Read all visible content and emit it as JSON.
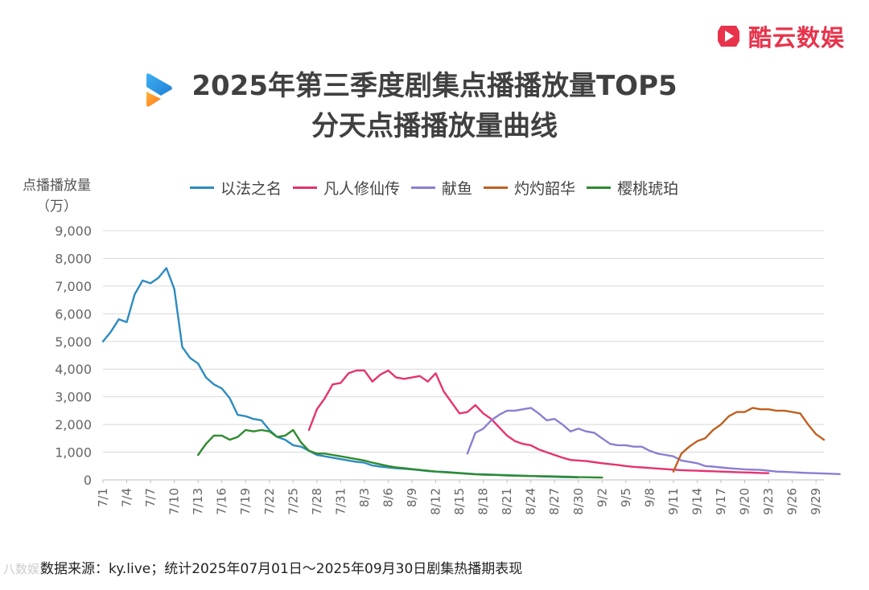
{
  "brand": {
    "name": "酷云数娱",
    "logo_icon": "kuyun-play-logo-icon",
    "color": "#e8334b"
  },
  "header": {
    "icon": "gradient-play-icon",
    "title_line1": "2025年第三季度剧集点播播放量TOP5",
    "title_line2": "分天点播播放量曲线"
  },
  "y_axis_label": {
    "line1": "点播播放量",
    "line2": "（万）"
  },
  "source": "数据来源：ky.live；统计2025年07月01日～2025年09月30日剧集热播期表现",
  "watermark": "八数娱乐",
  "chart_data": {
    "type": "line",
    "title": "分天点播播放量曲线",
    "ylabel": "点播播放量（万）",
    "ylim": [
      0,
      9000
    ],
    "yticks": [
      0,
      1000,
      2000,
      3000,
      4000,
      5000,
      6000,
      7000,
      8000,
      9000
    ],
    "ytick_labels": [
      "0",
      "1,000",
      "2,000",
      "3,000",
      "4,000",
      "5,000",
      "6,000",
      "7,000",
      "8,000",
      "9,000"
    ],
    "grid": true,
    "legend_position": "top",
    "x_start": "7/1",
    "num_days": 92,
    "xtick_every": 3,
    "xtick_labels": [
      "7/1",
      "7/4",
      "7/7",
      "7/10",
      "7/13",
      "7/16",
      "7/19",
      "7/22",
      "7/25",
      "7/28",
      "7/31",
      "8/3",
      "8/6",
      "8/9",
      "8/12",
      "8/15",
      "8/18",
      "8/21",
      "8/24",
      "8/27",
      "8/30",
      "9/2",
      "9/5",
      "9/8",
      "9/11",
      "9/14",
      "9/17",
      "9/20",
      "9/23",
      "9/26",
      "9/29"
    ],
    "series": [
      {
        "name": "以法之名",
        "color": "#2e8bc0",
        "start_day": 0,
        "values": [
          5000,
          5350,
          5800,
          5700,
          6700,
          7200,
          7100,
          7300,
          7650,
          6900,
          4800,
          4400,
          4200,
          3700,
          3450,
          3300,
          2950,
          2350,
          2300,
          2200,
          2150,
          1800,
          1550,
          1450,
          1250,
          1200,
          1050,
          900,
          850,
          800,
          750,
          700,
          650,
          620,
          520,
          480,
          450,
          420,
          400,
          380,
          350,
          320,
          300,
          290,
          270,
          250,
          230,
          210,
          200,
          190,
          180,
          170,
          160,
          150,
          140,
          130,
          120,
          110,
          100,
          95,
          90
        ]
      },
      {
        "name": "凡人修仙传",
        "color": "#e5336f",
        "start_day": 26,
        "values": [
          1800,
          2550,
          2950,
          3450,
          3500,
          3850,
          3950,
          3950,
          3550,
          3800,
          3950,
          3700,
          3650,
          3700,
          3750,
          3550,
          3850,
          3200,
          2800,
          2400,
          2450,
          2700,
          2400,
          2200,
          1900,
          1600,
          1400,
          1300,
          1250,
          1100,
          1000,
          900,
          800,
          720,
          700,
          680,
          640,
          600,
          570,
          540,
          500,
          470,
          450,
          430,
          410,
          390,
          370,
          350,
          340,
          330,
          320,
          310,
          300,
          290,
          280,
          270,
          260,
          250,
          240
        ]
      },
      {
        "name": "献鱼",
        "color": "#8a7fd1",
        "start_day": 46,
        "values": [
          950,
          1700,
          1850,
          2150,
          2350,
          2500,
          2500,
          2550,
          2600,
          2400,
          2150,
          2200,
          2000,
          1750,
          1850,
          1750,
          1700,
          1500,
          1300,
          1250,
          1250,
          1200,
          1200,
          1050,
          950,
          900,
          850,
          700,
          650,
          600,
          500,
          480,
          450,
          420,
          400,
          380,
          370,
          360,
          330,
          300,
          290,
          280,
          260,
          250,
          240,
          230,
          220,
          210
        ]
      },
      {
        "name": "灼灼韶华",
        "color": "#c0601f",
        "start_day": 72,
        "values": [
          300,
          950,
          1200,
          1400,
          1500,
          1800,
          2000,
          2300,
          2450,
          2450,
          2600,
          2550,
          2550,
          2500,
          2500,
          2450,
          2400,
          2000,
          1650,
          1450
        ]
      },
      {
        "name": "樱桃琥珀",
        "color": "#2e8b2e",
        "start_day": 12,
        "values": [
          900,
          1300,
          1600,
          1600,
          1450,
          1550,
          1800,
          1750,
          1800,
          1750,
          1550,
          1600,
          1800,
          1350,
          1050,
          950,
          950,
          900,
          850,
          800,
          750,
          700,
          620,
          560,
          500,
          450,
          420,
          390,
          360,
          330,
          300,
          280,
          260,
          240,
          220,
          200,
          190,
          180,
          170,
          160,
          150,
          145,
          140,
          135,
          130,
          125,
          120,
          110,
          100,
          95,
          90,
          85
        ]
      }
    ]
  }
}
